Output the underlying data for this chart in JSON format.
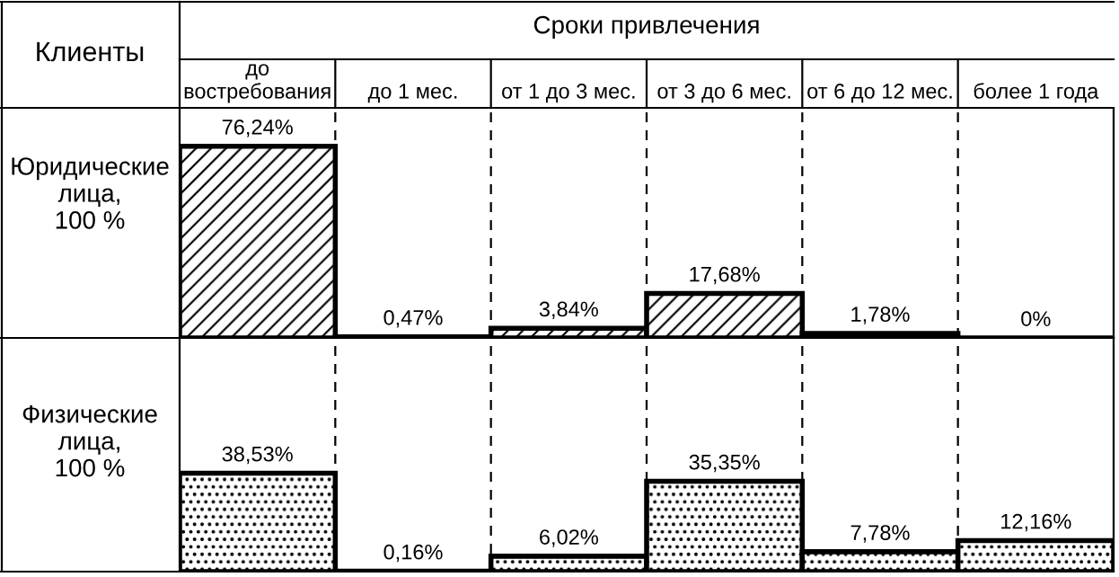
{
  "chart_data": [
    {
      "type": "bar",
      "title": "Сроки привлечения",
      "ylabel": "Юридические\nлица,\n100 %",
      "annotations": [
        "Клиенты"
      ],
      "categories": [
        "до\nвостребования",
        "до 1 мес.",
        "от 1 до 3 мес.",
        "от 3 до 6 мес.",
        "от 6 до 12 мес.",
        "более 1 года"
      ],
      "series": [
        {
          "color": "#000000",
          "values": [
            76.24,
            0.47,
            3.84,
            17.68,
            1.78,
            0
          ],
          "value_labels": [
            "76,24%",
            "0,47%",
            "3,84%",
            "17,68%",
            "1,78%",
            "0%"
          ]
        }
      ],
      "tick_labels": "x",
      "grid": false
    },
    {
      "type": "bar",
      "ylabel": "Физические\nлица,\n100 %",
      "categories": [
        null,
        null,
        null,
        null,
        null,
        null
      ],
      "series": [
        {
          "color": "#000000",
          "values": [
            38.53,
            0.16,
            6.02,
            35.35,
            7.78,
            12.16
          ],
          "value_labels": [
            "38,53%",
            "0,16%",
            "6,02%",
            "35,35%",
            "7,78%",
            "12,16%"
          ]
        }
      ],
      "tick_labels": false,
      "grid": false
    }
  ]
}
